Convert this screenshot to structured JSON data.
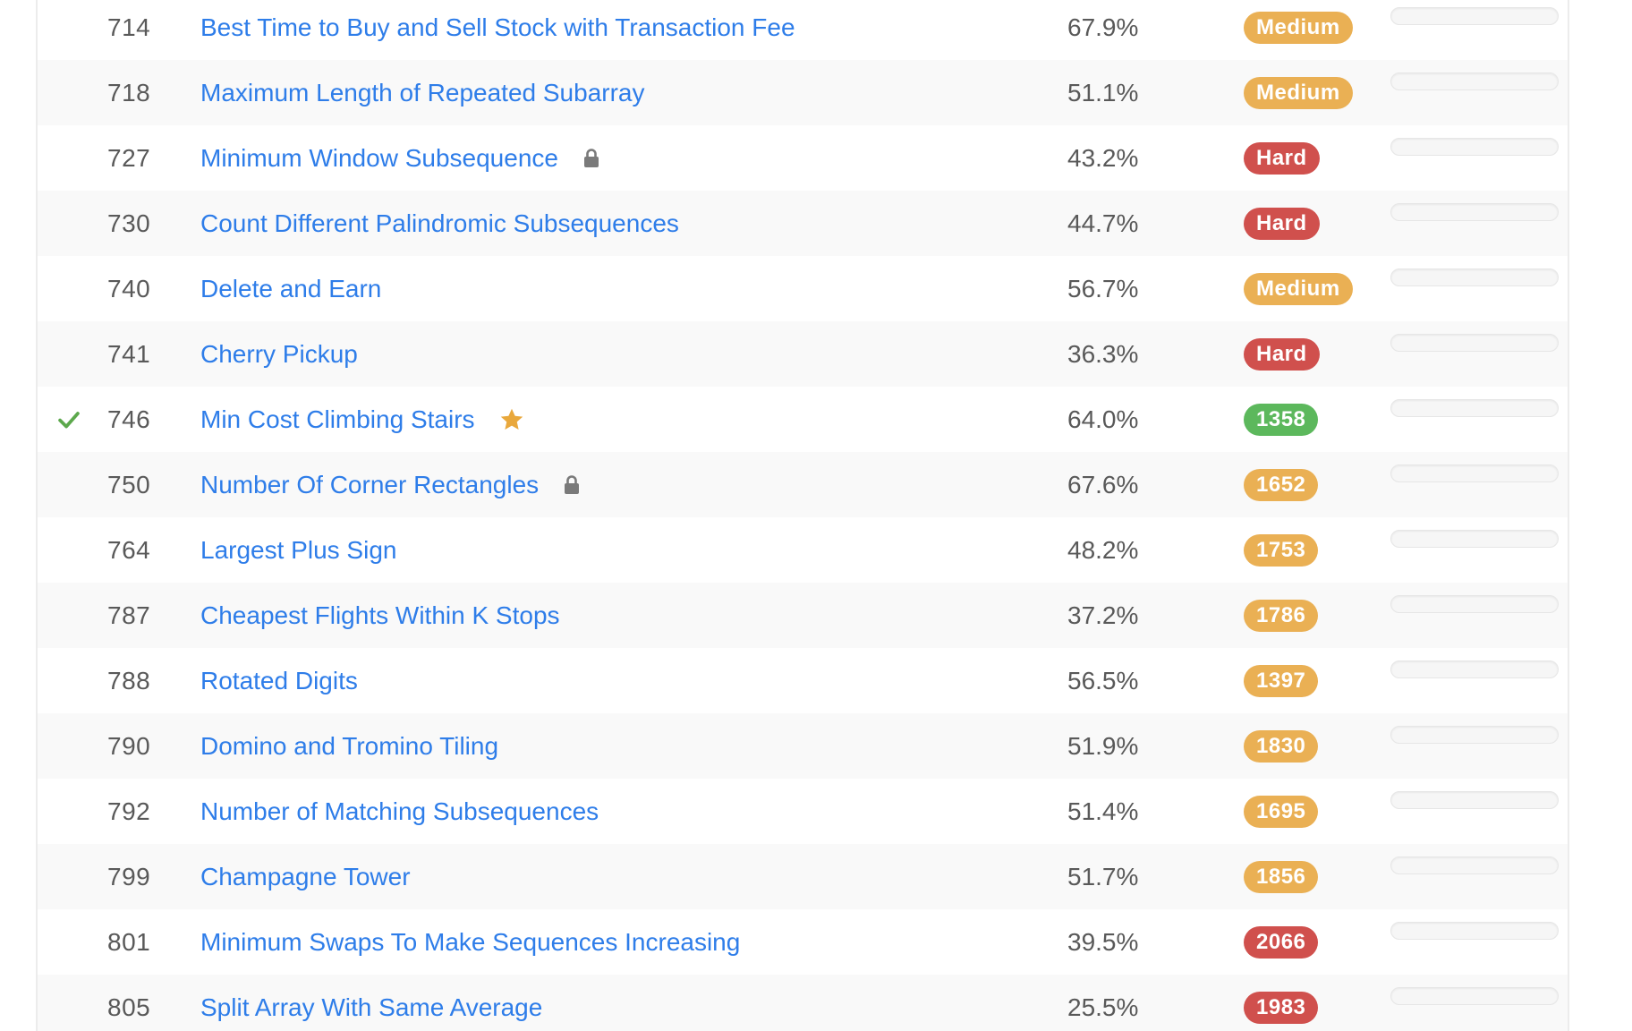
{
  "colors": {
    "link": "#2e7de9",
    "medium": "#eab054",
    "hard": "#d0504d",
    "easy": "#5cb85c",
    "check": "#5ca84c",
    "star": "#e9a83c",
    "lock": "#7a7a7a"
  },
  "problems": [
    {
      "id": "714",
      "title": "Best Time to Buy and Sell Stock with Transaction Fee",
      "acceptance": "67.9%",
      "badge": "Medium",
      "badge_type": "medium",
      "solved": false,
      "locked": false,
      "starred": false
    },
    {
      "id": "718",
      "title": "Maximum Length of Repeated Subarray",
      "acceptance": "51.1%",
      "badge": "Medium",
      "badge_type": "medium",
      "solved": false,
      "locked": false,
      "starred": false
    },
    {
      "id": "727",
      "title": "Minimum Window Subsequence",
      "acceptance": "43.2%",
      "badge": "Hard",
      "badge_type": "hard",
      "solved": false,
      "locked": true,
      "starred": false
    },
    {
      "id": "730",
      "title": "Count Different Palindromic Subsequences",
      "acceptance": "44.7%",
      "badge": "Hard",
      "badge_type": "hard",
      "solved": false,
      "locked": false,
      "starred": false
    },
    {
      "id": "740",
      "title": "Delete and Earn",
      "acceptance": "56.7%",
      "badge": "Medium",
      "badge_type": "medium",
      "solved": false,
      "locked": false,
      "starred": false
    },
    {
      "id": "741",
      "title": "Cherry Pickup",
      "acceptance": "36.3%",
      "badge": "Hard",
      "badge_type": "hard",
      "solved": false,
      "locked": false,
      "starred": false
    },
    {
      "id": "746",
      "title": "Min Cost Climbing Stairs",
      "acceptance": "64.0%",
      "badge": "1358",
      "badge_type": "easy",
      "solved": true,
      "locked": false,
      "starred": true
    },
    {
      "id": "750",
      "title": "Number Of Corner Rectangles",
      "acceptance": "67.6%",
      "badge": "1652",
      "badge_type": "medium",
      "solved": false,
      "locked": true,
      "starred": false
    },
    {
      "id": "764",
      "title": "Largest Plus Sign",
      "acceptance": "48.2%",
      "badge": "1753",
      "badge_type": "medium",
      "solved": false,
      "locked": false,
      "starred": false
    },
    {
      "id": "787",
      "title": "Cheapest Flights Within K Stops",
      "acceptance": "37.2%",
      "badge": "1786",
      "badge_type": "medium",
      "solved": false,
      "locked": false,
      "starred": false
    },
    {
      "id": "788",
      "title": "Rotated Digits",
      "acceptance": "56.5%",
      "badge": "1397",
      "badge_type": "medium",
      "solved": false,
      "locked": false,
      "starred": false
    },
    {
      "id": "790",
      "title": "Domino and Tromino Tiling",
      "acceptance": "51.9%",
      "badge": "1830",
      "badge_type": "medium",
      "solved": false,
      "locked": false,
      "starred": false
    },
    {
      "id": "792",
      "title": "Number of Matching Subsequences",
      "acceptance": "51.4%",
      "badge": "1695",
      "badge_type": "medium",
      "solved": false,
      "locked": false,
      "starred": false
    },
    {
      "id": "799",
      "title": "Champagne Tower",
      "acceptance": "51.7%",
      "badge": "1856",
      "badge_type": "medium",
      "solved": false,
      "locked": false,
      "starred": false
    },
    {
      "id": "801",
      "title": "Minimum Swaps To Make Sequences Increasing",
      "acceptance": "39.5%",
      "badge": "2066",
      "badge_type": "hard",
      "solved": false,
      "locked": false,
      "starred": false
    },
    {
      "id": "805",
      "title": "Split Array With Same Average",
      "acceptance": "25.5%",
      "badge": "1983",
      "badge_type": "hard",
      "solved": false,
      "locked": false,
      "starred": false
    }
  ]
}
